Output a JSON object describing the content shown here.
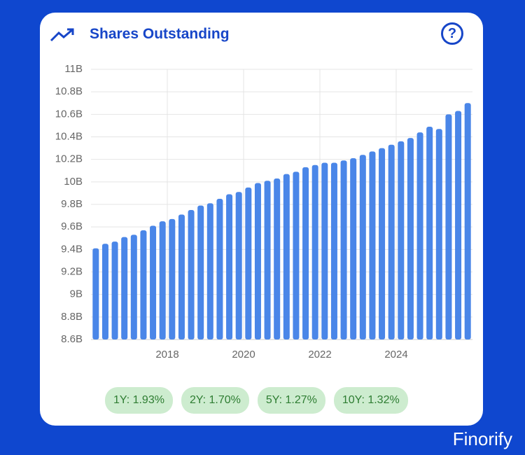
{
  "header": {
    "title": "Shares Outstanding",
    "help": "?"
  },
  "chart_data": {
    "type": "bar",
    "color": "#4a86e8",
    "grid": true,
    "x": [
      2016.125,
      2016.375,
      2016.625,
      2016.875,
      2017.125,
      2017.375,
      2017.625,
      2017.875,
      2018.125,
      2018.375,
      2018.625,
      2018.875,
      2019.125,
      2019.375,
      2019.625,
      2019.875,
      2020.125,
      2020.375,
      2020.625,
      2020.875,
      2021.125,
      2021.375,
      2021.625,
      2021.875,
      2022.125,
      2022.375,
      2022.625,
      2022.875,
      2023.125,
      2023.375,
      2023.625,
      2023.875,
      2024.125,
      2024.375,
      2024.625,
      2024.875,
      2025.125,
      2025.375,
      2025.625,
      2025.875
    ],
    "values": [
      9.41,
      9.45,
      9.47,
      9.51,
      9.53,
      9.57,
      9.61,
      9.65,
      9.67,
      9.71,
      9.75,
      9.79,
      9.81,
      9.85,
      9.89,
      9.91,
      9.95,
      9.99,
      10.01,
      10.03,
      10.07,
      10.09,
      10.13,
      10.15,
      10.17,
      10.17,
      10.19,
      10.21,
      10.24,
      10.27,
      10.3,
      10.33,
      10.36,
      10.39,
      10.44,
      10.49,
      10.47,
      10.6,
      10.63,
      10.7
    ],
    "xlim": [
      2016,
      2026
    ],
    "xticks": [
      2018,
      2020,
      2022,
      2024
    ],
    "ylim": [
      8.6,
      11
    ],
    "yticks": [
      {
        "value": 8.6,
        "label": "8.6B"
      },
      {
        "value": 8.8,
        "label": "8.8B"
      },
      {
        "value": 9,
        "label": "9B"
      },
      {
        "value": 9.2,
        "label": "9.2B"
      },
      {
        "value": 9.4,
        "label": "9.4B"
      },
      {
        "value": 9.6,
        "label": "9.6B"
      },
      {
        "value": 9.8,
        "label": "9.8B"
      },
      {
        "value": 10,
        "label": "10B"
      },
      {
        "value": 10.2,
        "label": "10.2B"
      },
      {
        "value": 10.4,
        "label": "10.4B"
      },
      {
        "value": 10.6,
        "label": "10.6B"
      },
      {
        "value": 10.8,
        "label": "10.8B"
      },
      {
        "value": 11,
        "label": "11B"
      }
    ]
  },
  "badges": [
    "1Y: 1.93%",
    "2Y: 1.70%",
    "5Y: 1.27%",
    "10Y: 1.32%"
  ],
  "footer": {
    "brand": "Finorify"
  }
}
